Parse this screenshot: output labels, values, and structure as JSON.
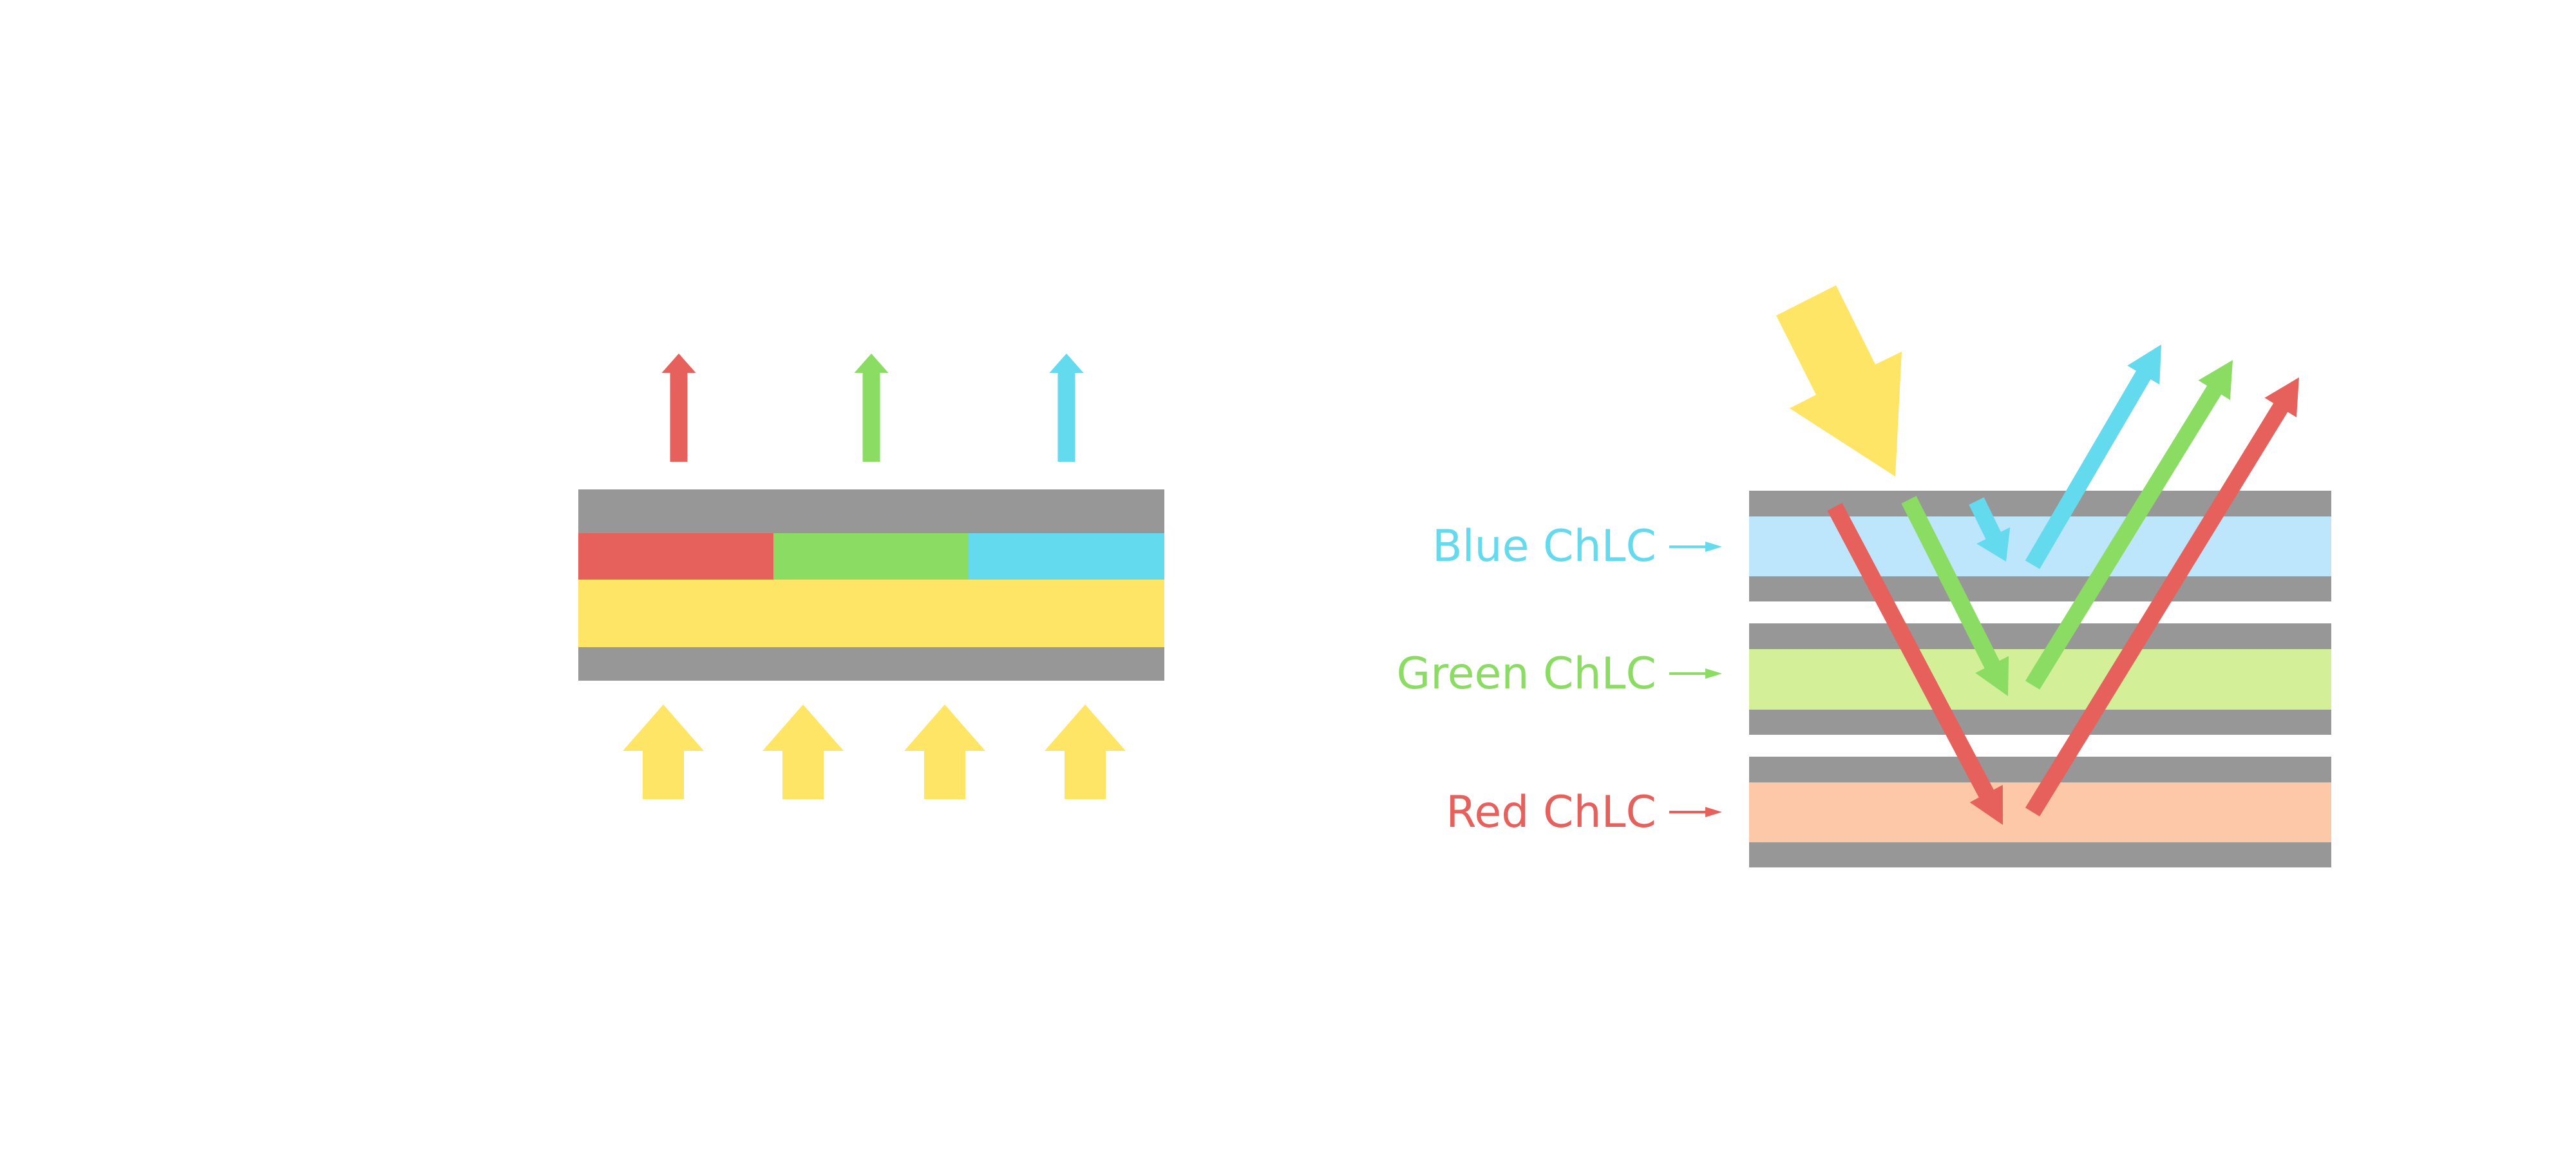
{
  "colors": {
    "gray": "#979797",
    "red": "#E6605C",
    "green": "#8ADD62",
    "blue": "#63DAEE",
    "yellow": "#FEE566",
    "blue_layer": "#BDE5FC",
    "green_layer": "#D3EF98",
    "red_layer": "#FDC8A8"
  },
  "labels": {
    "blue": "Blue ChLC",
    "green": "Green ChLC",
    "red": "Red ChLC"
  }
}
